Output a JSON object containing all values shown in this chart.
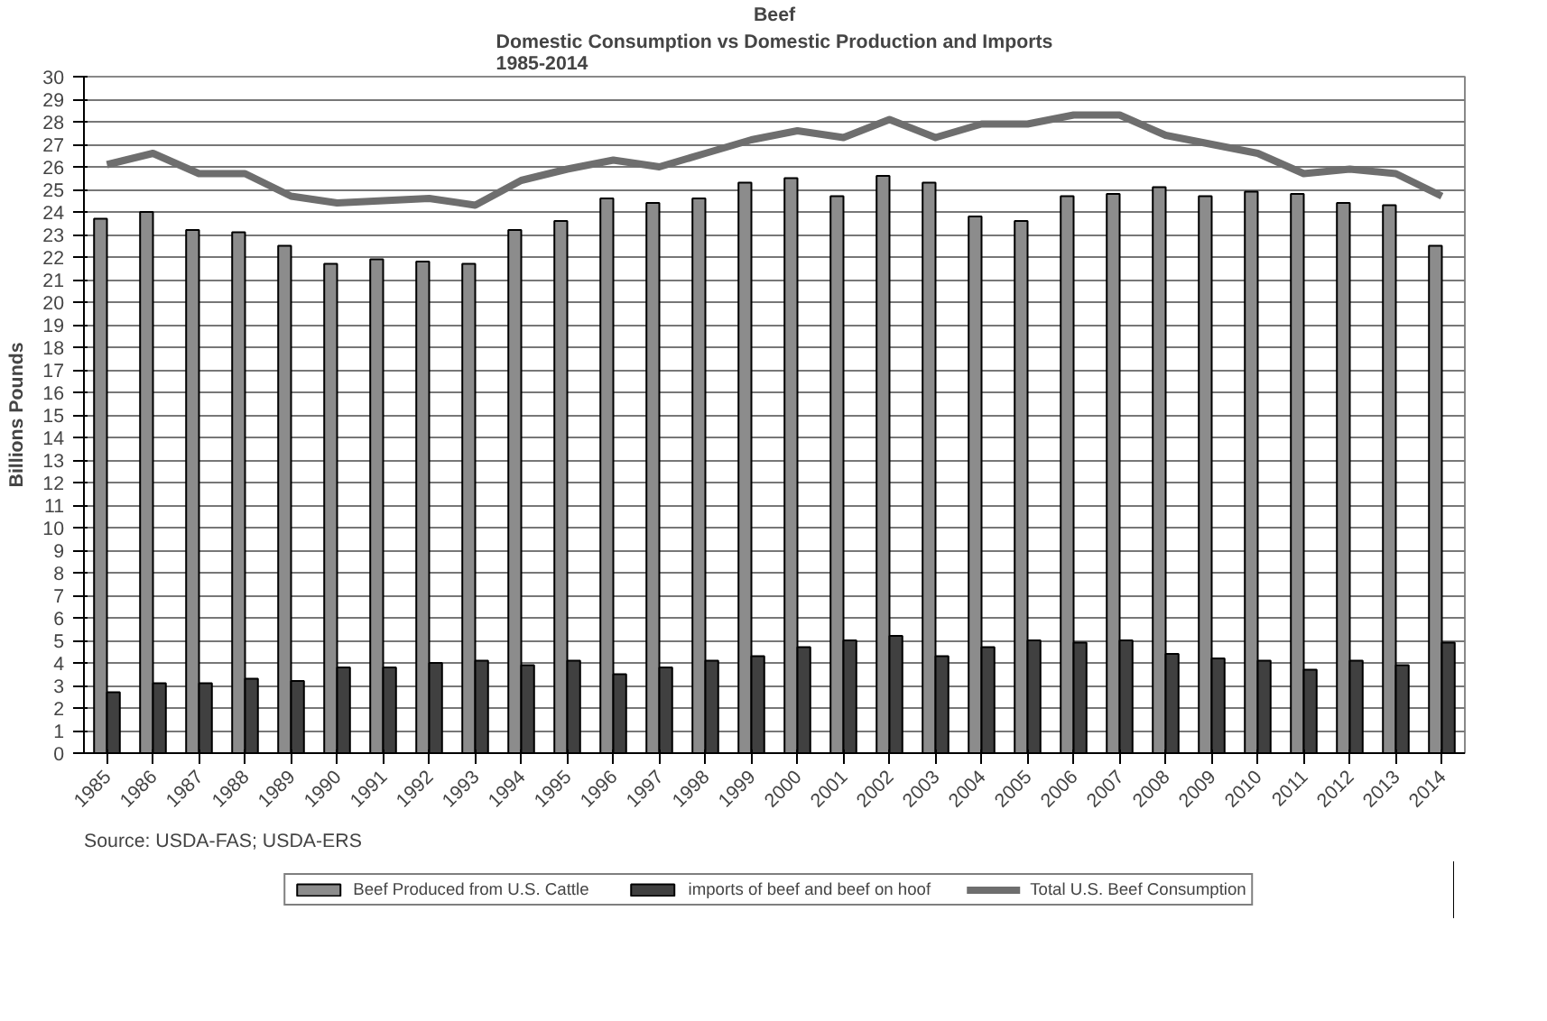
{
  "chart_data": {
    "type": "bar",
    "title": "Beef",
    "subtitle": "Domestic Consumption vs Domestic Production and Imports\n1985-2014",
    "ylabel": "Billions Pounds",
    "categories": [
      "1985",
      "1986",
      "1987",
      "1988",
      "1989",
      "1990",
      "1991",
      "1992",
      "1993",
      "1994",
      "1995",
      "1996",
      "1997",
      "1998",
      "1999",
      "2000",
      "2001",
      "2002",
      "2003",
      "2004",
      "2005",
      "2006",
      "2007",
      "2008",
      "2009",
      "2010",
      "2011",
      "2012",
      "2013",
      "2014"
    ],
    "series": [
      {
        "name": "Beef Produced from U.S. Cattle",
        "color": "#8c8c8c",
        "values": [
          23.7,
          24.0,
          23.2,
          23.1,
          22.5,
          21.7,
          21.9,
          21.8,
          21.7,
          23.2,
          23.6,
          24.6,
          24.4,
          24.6,
          25.3,
          25.5,
          24.7,
          25.6,
          25.3,
          23.8,
          23.6,
          24.7,
          24.8,
          25.1,
          24.7,
          24.9,
          24.8,
          24.4,
          24.3,
          22.5
        ]
      },
      {
        "name": "imports of beef and beef on hoof",
        "color": "#404040",
        "values": [
          2.7,
          3.1,
          3.1,
          3.3,
          3.2,
          3.8,
          3.8,
          4.0,
          4.1,
          3.9,
          4.1,
          3.5,
          3.8,
          4.1,
          4.3,
          4.7,
          5.0,
          5.2,
          4.3,
          4.7,
          5.0,
          4.9,
          5.0,
          4.4,
          4.2,
          4.1,
          3.7,
          4.1,
          3.9,
          4.9
        ]
      },
      {
        "name": "Total U.S. Beef Consumption",
        "type": "line",
        "color": "#6e6e6e",
        "values": [
          26.1,
          26.6,
          25.7,
          25.7,
          24.7,
          24.4,
          24.5,
          24.6,
          24.3,
          25.4,
          25.9,
          26.3,
          26.0,
          26.6,
          27.2,
          27.6,
          27.3,
          28.1,
          27.3,
          27.9,
          27.9,
          28.3,
          28.3,
          27.4,
          27.0,
          26.6,
          25.7,
          25.9,
          25.7,
          24.7
        ]
      }
    ],
    "ylim": [
      0,
      30
    ],
    "yticks": [
      0,
      1,
      2,
      3,
      4,
      5,
      6,
      7,
      8,
      9,
      10,
      11,
      12,
      13,
      14,
      15,
      16,
      17,
      18,
      19,
      20,
      21,
      22,
      23,
      24,
      25,
      26,
      27,
      28,
      29,
      30
    ],
    "grid": "y",
    "legend": "bottom",
    "marker": "none",
    "annotations": [
      "Source:  USDA-FAS; USDA-ERS"
    ]
  }
}
